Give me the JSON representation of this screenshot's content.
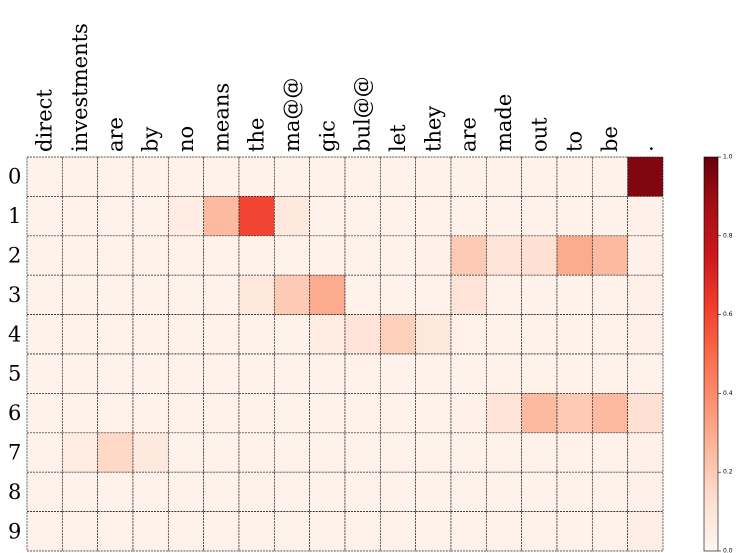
{
  "chart_data": {
    "type": "heatmap",
    "x_categories": [
      "direct",
      "investments",
      "are",
      "by",
      "no",
      "means",
      "the",
      "ma@@",
      "gic",
      "bul@@",
      "let",
      "they",
      "are",
      "made",
      "out",
      "to",
      "be",
      "."
    ],
    "y_categories": [
      "0",
      "1",
      "2",
      "3",
      "4",
      "5",
      "6",
      "7",
      "8",
      "9"
    ],
    "values": [
      [
        0.02,
        0.02,
        0.02,
        0.02,
        0.02,
        0.02,
        0.02,
        0.02,
        0.02,
        0.02,
        0.02,
        0.02,
        0.02,
        0.02,
        0.02,
        0.02,
        0.02,
        0.95
      ],
      [
        0.02,
        0.02,
        0.02,
        0.02,
        0.05,
        0.25,
        0.6,
        0.08,
        0.02,
        0.02,
        0.02,
        0.02,
        0.02,
        0.02,
        0.02,
        0.02,
        0.02,
        0.03
      ],
      [
        0.02,
        0.02,
        0.02,
        0.02,
        0.02,
        0.02,
        0.02,
        0.02,
        0.02,
        0.02,
        0.02,
        0.03,
        0.2,
        0.1,
        0.12,
        0.3,
        0.25,
        0.03
      ],
      [
        0.02,
        0.02,
        0.02,
        0.02,
        0.02,
        0.02,
        0.08,
        0.2,
        0.3,
        0.02,
        0.02,
        0.02,
        0.1,
        0.02,
        0.02,
        0.02,
        0.02,
        0.03
      ],
      [
        0.02,
        0.02,
        0.02,
        0.02,
        0.02,
        0.02,
        0.02,
        0.02,
        0.05,
        0.1,
        0.18,
        0.08,
        0.02,
        0.02,
        0.02,
        0.02,
        0.02,
        0.03
      ],
      [
        0.02,
        0.02,
        0.02,
        0.02,
        0.02,
        0.02,
        0.02,
        0.02,
        0.02,
        0.02,
        0.02,
        0.02,
        0.02,
        0.02,
        0.02,
        0.02,
        0.02,
        0.02
      ],
      [
        0.02,
        0.02,
        0.02,
        0.02,
        0.02,
        0.02,
        0.02,
        0.02,
        0.02,
        0.02,
        0.02,
        0.02,
        0.03,
        0.1,
        0.25,
        0.2,
        0.25,
        0.12
      ],
      [
        0.02,
        0.06,
        0.15,
        0.07,
        0.02,
        0.02,
        0.02,
        0.02,
        0.02,
        0.02,
        0.02,
        0.02,
        0.02,
        0.02,
        0.02,
        0.02,
        0.02,
        0.03
      ],
      [
        0.02,
        0.02,
        0.02,
        0.02,
        0.02,
        0.02,
        0.02,
        0.02,
        0.02,
        0.02,
        0.02,
        0.02,
        0.02,
        0.02,
        0.02,
        0.02,
        0.02,
        0.03
      ],
      [
        0.02,
        0.02,
        0.02,
        0.02,
        0.02,
        0.02,
        0.02,
        0.02,
        0.02,
        0.02,
        0.02,
        0.02,
        0.02,
        0.02,
        0.02,
        0.02,
        0.02,
        0.04
      ]
    ],
    "colormap": [
      "#fff5f0",
      "#fee0d2",
      "#fcbba1",
      "#fc9272",
      "#fb6a4a",
      "#ef3b2c",
      "#cb181d",
      "#a50f15",
      "#67000d"
    ],
    "clim": [
      0,
      1
    ],
    "cticks": [
      {
        "value": 0,
        "label": "0.0"
      },
      0.2,
      0.4,
      0.6,
      0.8,
      {
        "value": 1,
        "label": "1.0"
      }
    ]
  }
}
